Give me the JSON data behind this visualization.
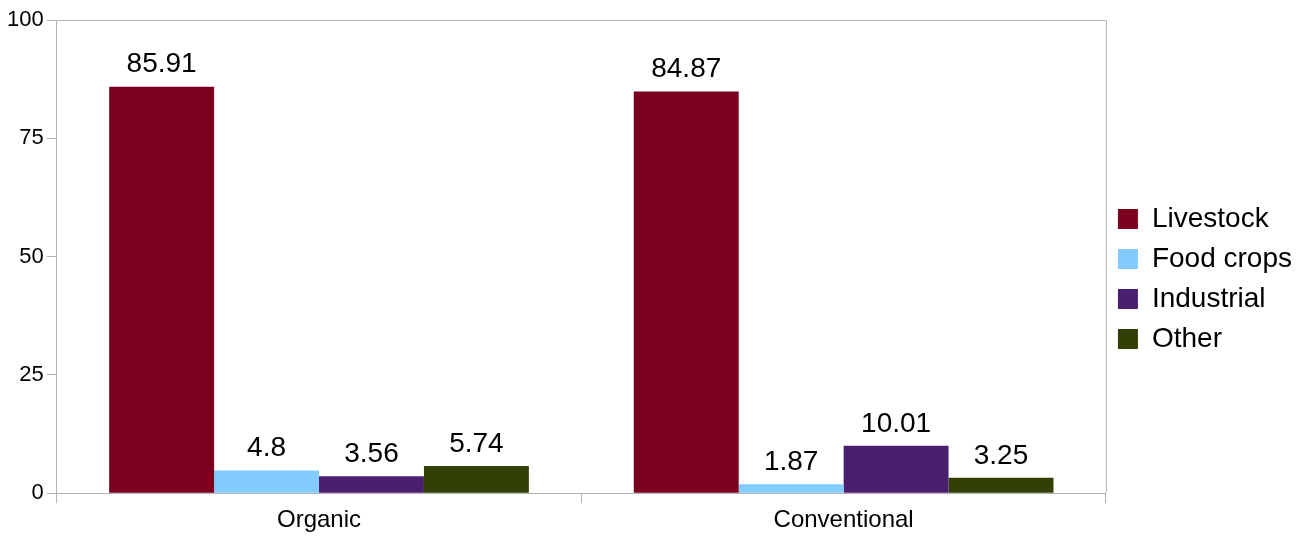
{
  "chart_data": {
    "type": "bar",
    "categories": [
      "Organic",
      "Conventional"
    ],
    "series": [
      {
        "name": "Livestock",
        "color": "#7b0020",
        "values": [
          85.91,
          84.87
        ]
      },
      {
        "name": "Food crops",
        "color": "#83caff",
        "values": [
          4.8,
          1.87
        ]
      },
      {
        "name": "Industrial",
        "color": "#4b1f6f",
        "values": [
          3.56,
          10.01
        ]
      },
      {
        "name": "Other",
        "color": "#314004",
        "values": [
          5.74,
          3.25
        ]
      }
    ],
    "ylim": [
      0,
      100
    ],
    "yticks": [
      0,
      25,
      50,
      75,
      100
    ],
    "grid": false,
    "legend": "right",
    "data_labels": true
  }
}
